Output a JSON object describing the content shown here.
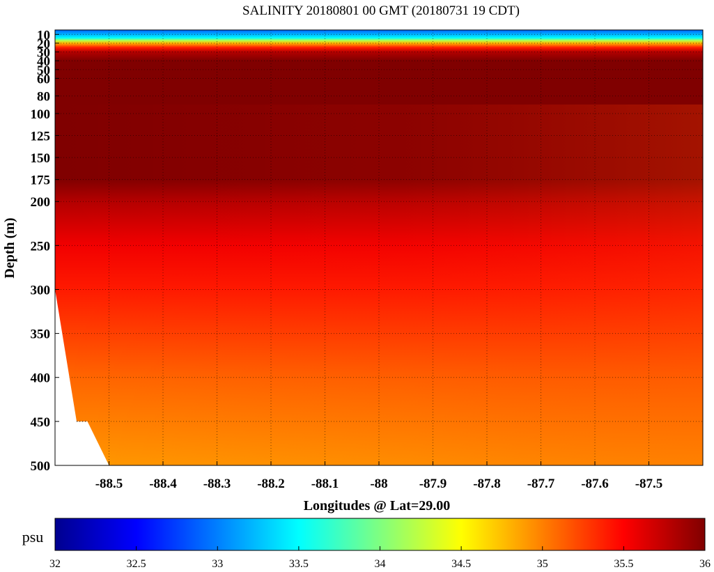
{
  "chart_data": {
    "type": "heatmap",
    "title": "SALINITY 20180801 00 GMT (20180731 19 CDT)",
    "xlabel": "Longitudes @ Lat=29.00",
    "ylabel": "Depth (m)",
    "xlim": [
      -88.6,
      -87.4
    ],
    "ylim": [
      0,
      500
    ],
    "x_ticks": [
      -88.5,
      -88.4,
      -88.3,
      -88.2,
      -88.1,
      -88,
      -87.9,
      -87.8,
      -87.7,
      -87.6,
      -87.5
    ],
    "x_tick_labels": [
      "-88.5",
      "-88.4",
      "-88.3",
      "-88.2",
      "-88.1",
      "-88",
      "-87.9",
      "-87.8",
      "-87.7",
      "-87.6",
      "-87.5"
    ],
    "y_ticks": [
      10,
      20,
      30,
      40,
      50,
      60,
      80,
      100,
      125,
      150,
      175,
      200,
      250,
      300,
      350,
      400,
      450,
      500
    ],
    "y_tick_labels": [
      "10",
      "20",
      "30",
      "40",
      "50",
      "60",
      "80",
      "100",
      "125",
      "150",
      "175",
      "200",
      "250",
      "300",
      "350",
      "400",
      "450",
      "500"
    ],
    "grid": true,
    "bottom_profile": [
      {
        "lon": -88.6,
        "depth": 300
      },
      {
        "lon": -88.56,
        "depth": 450
      },
      {
        "lon": -88.54,
        "depth": 450
      },
      {
        "lon": -88.5,
        "depth": 500
      }
    ],
    "depth_profile": [
      {
        "depth": 0,
        "value": 32.6
      },
      {
        "depth": 5,
        "value": 32.9
      },
      {
        "depth": 10,
        "value": 33.2
      },
      {
        "depth": 14,
        "value": 33.5
      },
      {
        "depth": 17,
        "value": 34.2
      },
      {
        "depth": 20,
        "value": 34.8
      },
      {
        "depth": 25,
        "value": 35.4
      },
      {
        "depth": 30,
        "value": 35.8
      },
      {
        "depth": 40,
        "value": 36.0
      },
      {
        "depth": 100,
        "value": 36.1
      },
      {
        "depth": 175,
        "value": 36.0
      },
      {
        "depth": 200,
        "value": 35.8
      },
      {
        "depth": 250,
        "value": 35.55
      },
      {
        "depth": 300,
        "value": 35.4
      },
      {
        "depth": 350,
        "value": 35.25
      },
      {
        "depth": 400,
        "value": 35.1
      },
      {
        "depth": 450,
        "value": 35.0
      },
      {
        "depth": 500,
        "value": 34.9
      }
    ],
    "colorbar": {
      "label": "psu",
      "range": [
        32,
        36
      ],
      "ticks": [
        "32",
        "32.5",
        "33",
        "33.5",
        "34",
        "34.5",
        "35",
        "35.5",
        "36"
      ],
      "colormap": "jet"
    }
  }
}
